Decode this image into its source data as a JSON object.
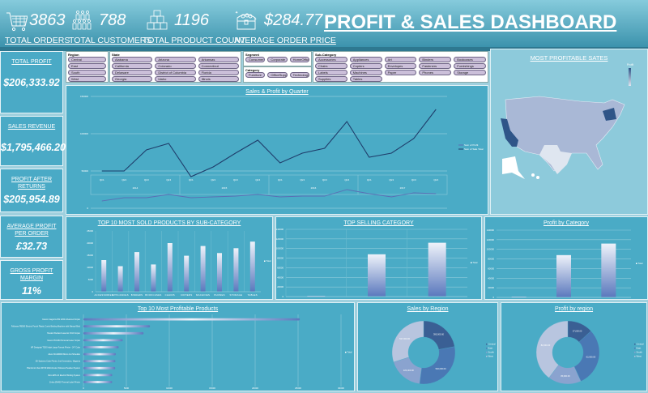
{
  "header": {
    "title": "PROFIT & SALES DASHBOARD",
    "kpis": [
      {
        "icon": "shopping-cart-icon",
        "value": "3863",
        "label": "TOTAL ORDERS"
      },
      {
        "icon": "people-icon",
        "value": "788",
        "label": "TOTAL CUSTOMERS"
      },
      {
        "icon": "boxes-icon",
        "value": "1196",
        "label": "TOTAL PRODUCT COUNT"
      },
      {
        "icon": "treasure-chest-icon",
        "value": "$284.77",
        "label": "AVERAGE ORDER PRICE"
      }
    ]
  },
  "cards": [
    {
      "title": "TOTAL PROFIT",
      "value": "$206,333.92"
    },
    {
      "title": "SALES REVENUE",
      "value": "$1,795,466.20"
    },
    {
      "title": "PROFIT AFTER RETURNS",
      "value": "$205,954.89"
    },
    {
      "title": "AVERAGE PROFIT PER ORDER",
      "value": "£32.73"
    },
    {
      "title": "GROSS PROFIT MARGIN",
      "value": "11%"
    }
  ],
  "slicers": {
    "region": {
      "title": "Region",
      "items": [
        "Central",
        "East",
        "South",
        "West"
      ]
    },
    "state": {
      "title": "State",
      "items": [
        "Alabama",
        "Arizona",
        "Arkansas",
        "California",
        "Colorado",
        "Connecticut",
        "Delaware",
        "District of Columbia",
        "Florida",
        "Georgia",
        "Idaho",
        "Illinois"
      ]
    },
    "segment": {
      "title": "Segment",
      "items": [
        "Consumer",
        "Corporate",
        "HomeOffice"
      ]
    },
    "category": {
      "title": "Category",
      "items": [
        "Furniture",
        "OfficeSupplies",
        "Technology"
      ]
    },
    "subcategory": {
      "title": "Sub-Category",
      "items": [
        "Accessories",
        "Appliances",
        "Art",
        "Binders",
        "Bookcases",
        "Chairs",
        "Copiers",
        "Envelopes",
        "Fasteners",
        "Furnishings",
        "Labels",
        "Machines",
        "Paper",
        "Phones",
        "Storage",
        "Supplies",
        "Tables"
      ]
    }
  },
  "colors": {
    "panel": "#4aabc6",
    "sales_line": "#1f3d6b",
    "profit_line": "#5a6fb5",
    "bar_top": "#eef2fa",
    "bar_bottom": "#5a78bd",
    "region": [
      "#3a5f94",
      "#4a78b4",
      "#8aa3cf",
      "#b8c5df"
    ]
  },
  "map": {
    "title": "MOST PROFITABLE SATES",
    "legend_label": "Profit"
  },
  "chart_data": [
    {
      "type": "line",
      "title": "Sales & Profit by Quarter",
      "categories": [
        "Qtr1",
        "Qtr2",
        "Qtr3",
        "Qtr4",
        "Qtr1",
        "Qtr2",
        "Qtr3",
        "Qtr4",
        "Qtr1",
        "Qtr2",
        "Qtr3",
        "Qtr4",
        "Qtr1",
        "Qtr2",
        "Qtr3",
        "Qtr4"
      ],
      "groups": [
        "2014",
        "2015",
        "2016",
        "2017"
      ],
      "yticks": [
        0,
        50000,
        100000,
        150000
      ],
      "ylim": [
        0,
        160000
      ],
      "series": [
        {
          "name": "Sum of Profit",
          "values": [
            25000,
            29300,
            29300,
            33700,
            29300,
            30400,
            31500,
            33700,
            30400,
            31500,
            31500,
            40200,
            34800,
            30400,
            35900,
            34800
          ]
        },
        {
          "name": "Sum of Sale Total",
          "values": [
            54300,
            54300,
            82600,
            91300,
            46700,
            59800,
            78300,
            95700,
            65200,
            78300,
            84800,
            120700,
            72800,
            78300,
            97800,
            137000
          ]
        }
      ]
    },
    {
      "type": "bar",
      "title": "TOP 10 MOST SOLD PRODUCTS BY SUB-CATEGORY",
      "categories": [
        "ACCESSORIES",
        "APPLIANCES",
        "BINDERS",
        "BOOKCASES",
        "CHAIRS",
        "COPIERS",
        "MACHINES",
        "PHONES",
        "STORAGE",
        "TABLES"
      ],
      "values": [
        13000,
        10500,
        16300,
        11200,
        20000,
        14800,
        18800,
        15900,
        17900,
        20600
      ],
      "yticks": [
        0,
        5000,
        10000,
        15000,
        20000,
        25000
      ],
      "ylim": [
        0,
        25000
      ],
      "legend": "Total"
    },
    {
      "type": "bar",
      "title": "TOP SELLING CATEGORY",
      "categories": [
        "FURNITURE",
        "OFFICE SUPPLIES",
        "TECHNOLOGY"
      ],
      "values": [
        1000,
        88000,
        112000
      ],
      "yticks": [
        0,
        20000,
        40000,
        60000,
        80000,
        100000,
        120000,
        140000
      ],
      "ylim": [
        0,
        140000
      ],
      "legend": "Total"
    },
    {
      "type": "bar",
      "title": "Profit by Category",
      "categories": [
        "Furniture",
        "Office Supplies",
        "Technology"
      ],
      "values": [
        1000,
        88000,
        112000
      ],
      "yticks": [
        0,
        20000,
        40000,
        60000,
        80000,
        100000,
        120000,
        140000
      ],
      "ylim": [
        0,
        140000
      ],
      "legend": "Total"
    },
    {
      "type": "bar",
      "orientation": "horizontal",
      "title": "Top 10 Most Profitable Products",
      "categories": [
        "Canon imageCLASS 2200 Advanced Copier",
        "Fellowes PB500 Electric Punch Plastic Comb Binding Machine with Manual Bind",
        "Hewlett Packard LaserJet 3310 Copier",
        "Canon PC1060 Personal Laser Copier",
        "HP Designjet T520 Inkjet Large Format Printer - 24\" Color",
        "Ativa V4110MDD Micro-Cut Shredder",
        "3D Systems Cube Printer, 2nd Generation, Magenta",
        "Plantronics Savi W720 Multi-Device Wireless Headset System",
        "Ibico EPK-21 Electric Binding System",
        "Zebra ZM400 Thermal Label Printer"
      ],
      "values": [
        25200,
        7750,
        7000,
        4570,
        4100,
        3770,
        3720,
        3700,
        3350,
        3340
      ],
      "xticks": [
        0,
        5000,
        10000,
        15000,
        20000,
        25000,
        30000
      ],
      "xlim": [
        0,
        30000
      ],
      "legend": "Total"
    },
    {
      "type": "pie",
      "donut": true,
      "title": "Sales by Region",
      "categories": [
        "Central",
        "East",
        "South",
        "West"
      ],
      "values": [
        395000,
        540000,
        323000,
        537000
      ]
    },
    {
      "type": "pie",
      "donut": true,
      "title": "Profit by region",
      "categories": [
        "Central",
        "East",
        "South",
        "West"
      ],
      "values": [
        27000,
        62000,
        35000,
        82000
      ]
    }
  ]
}
